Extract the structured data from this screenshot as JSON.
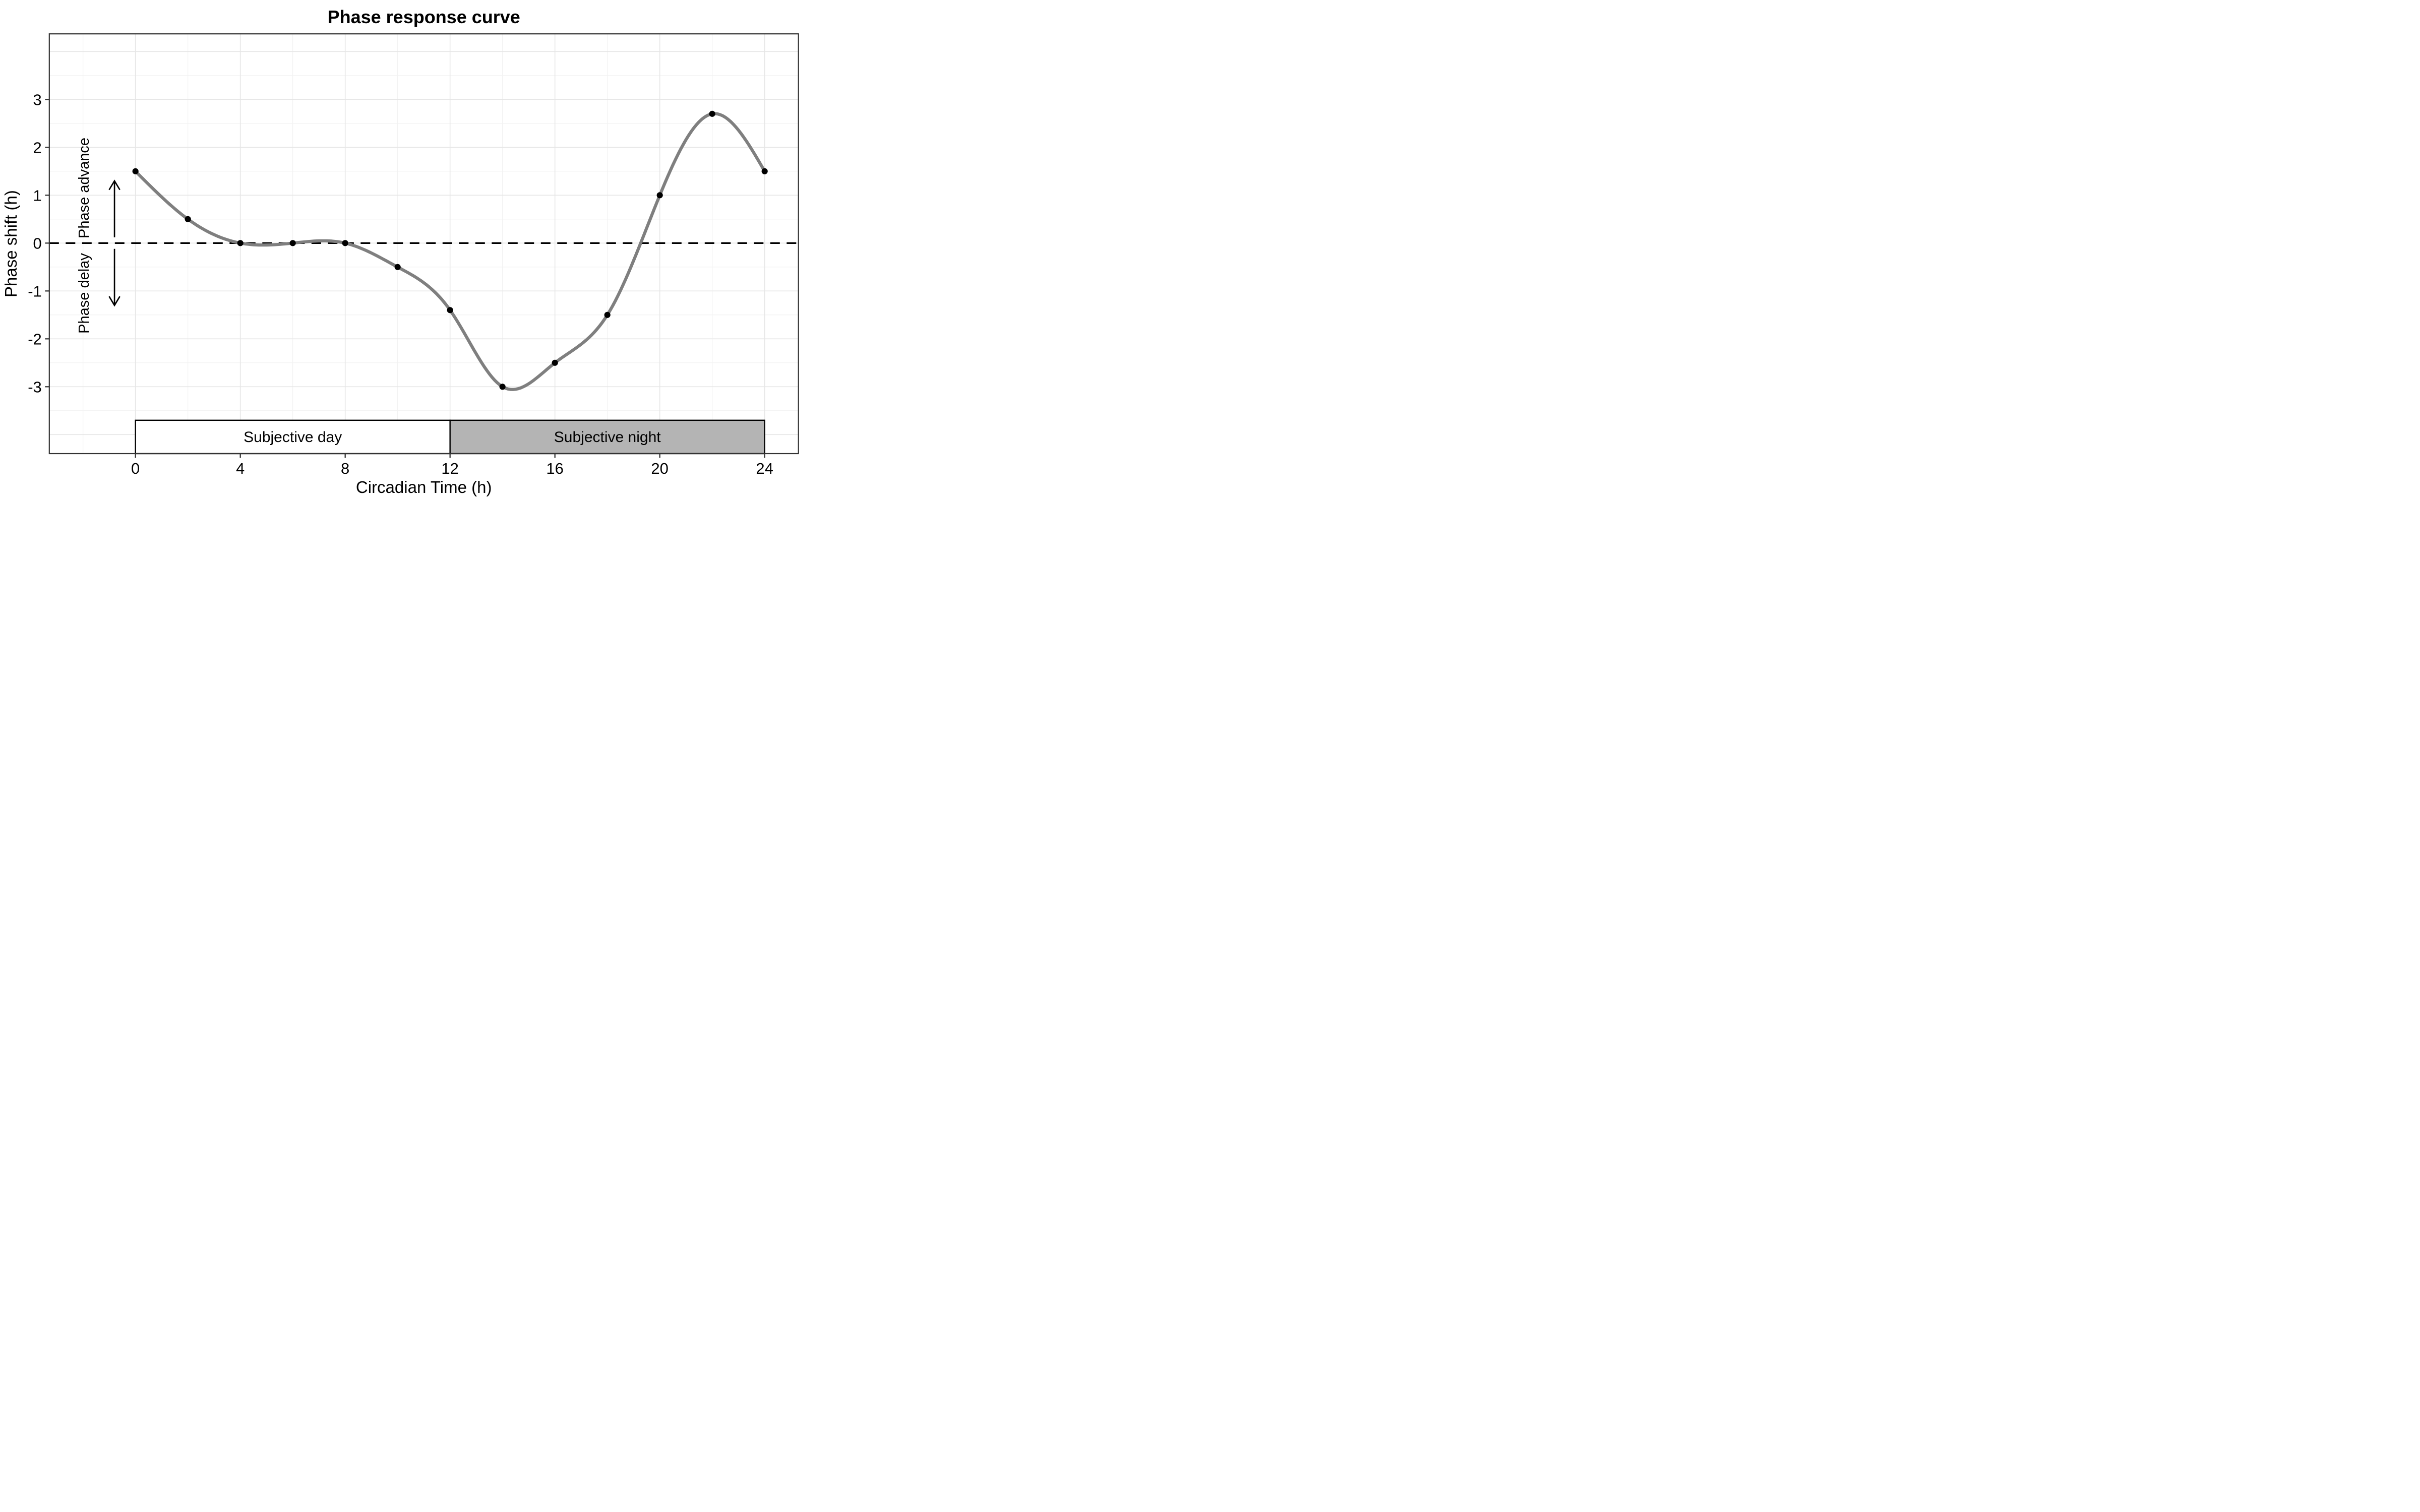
{
  "title": "Phase response curve",
  "axes": {
    "x": {
      "title": "Circadian Time (h)",
      "ticks": [
        0,
        4,
        8,
        12,
        16,
        20,
        24
      ]
    },
    "y": {
      "title": "Phase shift (h)",
      "ticks": [
        3,
        2,
        1,
        0,
        -1,
        -2,
        -3
      ]
    }
  },
  "annotations": {
    "phase_advance_label": "Phase advance",
    "phase_delay_label": "Phase delay"
  },
  "bands": [
    {
      "label": "Subjective day",
      "x_start": 0,
      "x_end": 12,
      "fill": "#ffffff"
    },
    {
      "label": "Subjective night",
      "x_start": 12,
      "x_end": 24,
      "fill": "#b4b4b4"
    }
  ],
  "colors": {
    "background": "#ffffff",
    "curve": "#7f7f7f",
    "points": "#000000",
    "grid_major": "#e6e6e6",
    "grid_minor": "#f1f1f1",
    "panel_border": "#333333",
    "tick_mark": "#333333",
    "zero_line": "#000000",
    "band_border": "#000000",
    "arrow": "#000000"
  },
  "chart_data": {
    "type": "line",
    "title": "Phase response curve",
    "xlabel": "Circadian Time (h)",
    "ylabel": "Phase shift (h)",
    "x": [
      0,
      2,
      4,
      6,
      8,
      10,
      12,
      14,
      16,
      18,
      20,
      22,
      24
    ],
    "y": [
      1.5,
      0.5,
      0,
      0,
      0,
      -0.5,
      -1.4,
      -3,
      -2.5,
      -1.5,
      1,
      2.7,
      1.5
    ],
    "interpolation": "natural-cubic-spline",
    "marker": "filled-circle",
    "xlim": [
      -3.29,
      25.29
    ],
    "ylim": [
      -4.4,
      4.37
    ],
    "x_tick_values": [
      0,
      4,
      8,
      12,
      16,
      20,
      24
    ],
    "y_tick_values": [
      3,
      2,
      1,
      0,
      -1,
      -2,
      -3
    ],
    "x_gridlines_major": [
      0,
      4,
      8,
      12,
      16,
      20,
      24
    ],
    "x_gridlines_minor": [
      -2,
      2,
      6,
      10,
      14,
      18,
      22
    ],
    "y_gridlines_major": [
      -4,
      -3,
      -2,
      -1,
      0,
      1,
      2,
      3,
      4
    ],
    "y_gridlines_minor": [
      -3.5,
      -2.5,
      -1.5,
      -0.5,
      0.5,
      1.5,
      2.5,
      3.5
    ],
    "zero_reference_line_y": 0,
    "band_top_y": -3.7,
    "arrows": [
      {
        "x": -0.8,
        "y_from": 0.12,
        "y_to": 1.3,
        "direction": "up"
      },
      {
        "x": -0.8,
        "y_from": -0.12,
        "y_to": -1.3,
        "direction": "down"
      }
    ],
    "grid": true,
    "legend": "none"
  }
}
